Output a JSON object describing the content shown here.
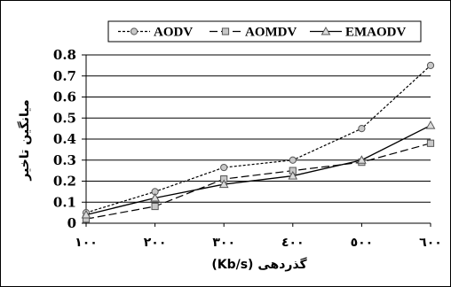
{
  "chart_data": {
    "type": "line",
    "categories": [
      "١٠٠",
      "٢٠٠",
      "٣٠٠",
      "٤٠٠",
      "٥٠٠",
      "٦٠٠"
    ],
    "x": [
      100,
      200,
      300,
      400,
      500,
      600
    ],
    "xlabel": "(Kb/s) گذردهی",
    "ylabel": "میانگین تاخیر",
    "ylim": [
      0,
      0.8
    ],
    "yticks": [
      "0",
      "0.1",
      "0.2",
      "0.3",
      "0.4",
      "0.5",
      "0.6",
      "0.7",
      "0.8"
    ],
    "grid": "horizontal",
    "legend": "top",
    "series": [
      {
        "name": "AODV",
        "values": [
          0.05,
          0.15,
          0.265,
          0.3,
          0.45,
          0.75
        ],
        "color": "#000000",
        "marker": "circle",
        "dash": "short"
      },
      {
        "name": "AOMDV",
        "values": [
          0.02,
          0.08,
          0.21,
          0.25,
          0.29,
          0.38
        ],
        "color": "#000000",
        "marker": "square",
        "dash": "long"
      },
      {
        "name": "EMAODV",
        "values": [
          0.04,
          0.12,
          0.185,
          0.225,
          0.3,
          0.465
        ],
        "color": "#000000",
        "marker": "triangle",
        "dash": "solid"
      }
    ]
  }
}
